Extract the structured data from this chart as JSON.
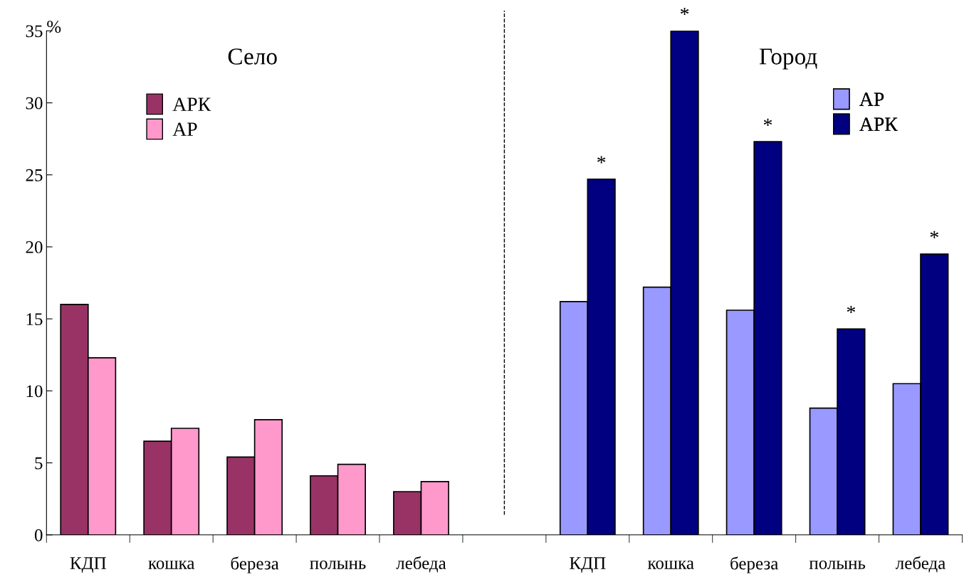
{
  "chart_data": {
    "type": "bar",
    "categories": [
      "КДП",
      "кошка",
      "береза",
      "полынь",
      "лебеда",
      null,
      "КДП",
      "кошка",
      "береза",
      "полынь",
      "лебеда"
    ],
    "series": [
      {
        "name": "АРК",
        "color": "#993366",
        "values": [
          16.0,
          6.5,
          5.4,
          4.1,
          3.0,
          null,
          null,
          null,
          null,
          null,
          null
        ]
      },
      {
        "name": "АР",
        "color": "#ff99cc",
        "values": [
          12.3,
          7.4,
          8.0,
          4.9,
          3.7,
          null,
          null,
          null,
          null,
          null,
          null
        ]
      },
      {
        "name": "АР",
        "color": "#9999ff",
        "values": [
          null,
          null,
          null,
          null,
          null,
          null,
          16.2,
          17.2,
          15.6,
          8.8,
          10.5
        ]
      },
      {
        "name": "АРК",
        "color": "#000080",
        "values": [
          null,
          null,
          null,
          null,
          null,
          null,
          24.7,
          35.0,
          27.3,
          14.3,
          19.5
        ],
        "value_labels": [
          null,
          null,
          null,
          null,
          null,
          null,
          "*",
          "*",
          "*",
          "*",
          "*"
        ]
      }
    ],
    "ylabel": "%",
    "annotations": [
      "Село",
      "Город"
    ],
    "ylim": [
      0,
      35
    ],
    "yticks": [
      0,
      5,
      10,
      15,
      20,
      25,
      30,
      35
    ],
    "ref_lines": [
      {
        "axis": "x",
        "value": null,
        "line_style": "dashed",
        "color": "#000000"
      }
    ],
    "legend": "top"
  }
}
